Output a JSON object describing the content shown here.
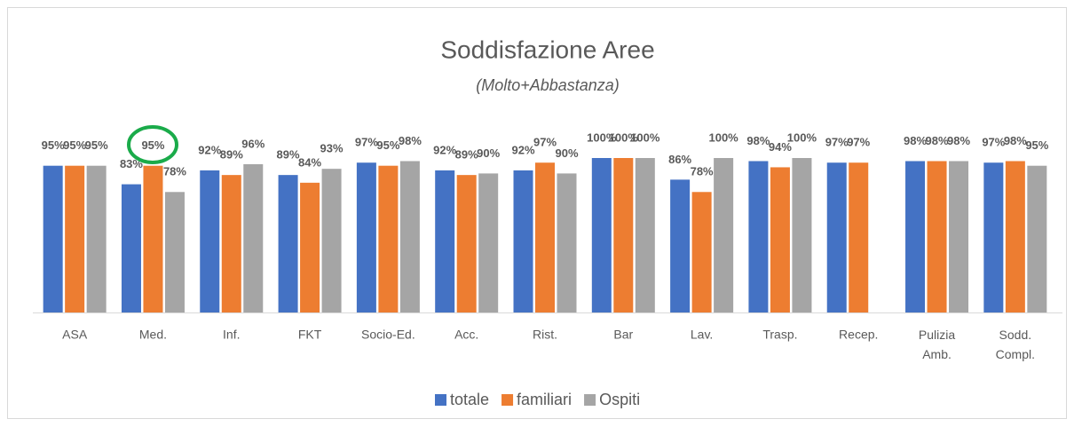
{
  "chart_data": {
    "type": "bar",
    "title": "Soddisfazione Aree",
    "subtitle": "(Molto+Abbastanza)",
    "categories": [
      "ASA",
      "Med.",
      "Inf.",
      "FKT",
      "Socio-Ed.",
      "Acc.",
      "Rist.",
      "Bar",
      "Lav.",
      "Trasp.",
      "Recep.",
      "Pulizia Amb.",
      "Sodd. Compl."
    ],
    "series": [
      {
        "name": "totale",
        "color": "#4472c4",
        "values": [
          95,
          83,
          92,
          89,
          97,
          92,
          92,
          100,
          86,
          98,
          97,
          98,
          97
        ],
        "value_labels": [
          "95%",
          "83%",
          "92%",
          "89%",
          "97%",
          "92%",
          "92%",
          "100%",
          "86%",
          "98%",
          "97%",
          "98%",
          "97%"
        ]
      },
      {
        "name": "familiari",
        "color": "#ed7d31",
        "values": [
          95,
          95,
          89,
          84,
          95,
          89,
          97,
          100,
          78,
          94,
          97,
          98,
          98
        ],
        "value_labels": [
          "95%",
          "95%",
          "89%",
          "84%",
          "95%",
          "89%",
          "97%",
          "100%",
          "78%",
          "94%",
          "97%",
          "98%",
          "98%"
        ]
      },
      {
        "name": "Ospiti",
        "color": "#a5a5a5",
        "values": [
          95,
          78,
          96,
          93,
          98,
          90,
          90,
          100,
          100,
          100,
          null,
          98,
          95
        ],
        "value_labels": [
          "95%",
          "78%",
          "96%",
          "93%",
          "98%",
          "90%",
          "90%",
          "100%",
          "100%",
          "100%",
          null,
          "98%",
          "95%"
        ]
      }
    ],
    "ylim": [
      0,
      100
    ],
    "legend": "bottom"
  }
}
